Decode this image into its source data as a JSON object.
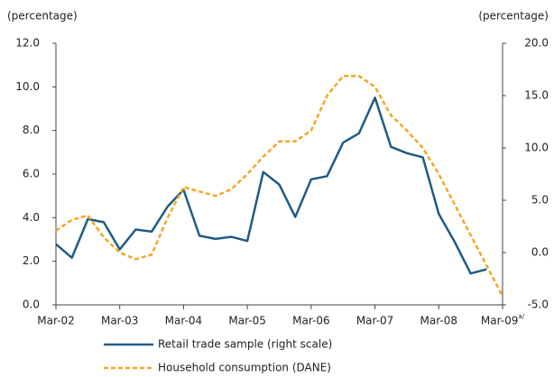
{
  "chart_data": {
    "type": "line",
    "ylabel": "(percentage)",
    "y2label": "(percentage)",
    "categories": [
      "Mar-02",
      null,
      null,
      null,
      "Mar-03",
      null,
      null,
      null,
      "Mar-04",
      null,
      null,
      null,
      "Mar-05",
      null,
      null,
      null,
      "Mar-06",
      null,
      null,
      null,
      "Mar-07",
      null,
      null,
      null,
      "Mar-08",
      null,
      null,
      null,
      "Mar-09"
    ],
    "last_category_note": "a/",
    "ylim": [
      0,
      12
    ],
    "yticks": [
      {
        "value": 0,
        "label": "0.0"
      },
      {
        "value": 2,
        "label": "2.0"
      },
      {
        "value": 4,
        "label": "4.0"
      },
      {
        "value": 6,
        "label": "6.0"
      },
      {
        "value": 8,
        "label": "8.0"
      },
      {
        "value": 10,
        "label": "10.0"
      },
      {
        "value": 12,
        "label": "12.0"
      }
    ],
    "y2lim": [
      -5,
      20
    ],
    "y2ticks": [
      {
        "value": -5,
        "label": "-5.0"
      },
      {
        "value": 0,
        "label": "0.0"
      },
      {
        "value": 5,
        "label": "5.0"
      },
      {
        "value": 10,
        "label": "10.0"
      },
      {
        "value": 15,
        "label": "15.0"
      },
      {
        "value": 20,
        "label": "20.0"
      }
    ],
    "series": [
      {
        "name": "Retail trade sample (right scale)",
        "color": "#1f5c85",
        "axis": "y2",
        "dashed": false,
        "values": [
          0.8,
          -0.5,
          3.2,
          2.9,
          0.3,
          2.2,
          2.0,
          4.4,
          6.0,
          1.6,
          1.3,
          1.5,
          1.1,
          7.7,
          6.5,
          3.4,
          7.0,
          7.3,
          10.5,
          11.4,
          14.8,
          10.1,
          9.5,
          9.1,
          3.7,
          1.0,
          -2.0,
          -1.6,
          null
        ]
      },
      {
        "name": "Household consumption (DANE)",
        "color": "#f5a623",
        "axis": "y",
        "dashed": true,
        "values": [
          3.4,
          3.9,
          4.1,
          3.1,
          2.4,
          2.1,
          2.3,
          4.0,
          5.4,
          5.2,
          5.0,
          5.3,
          6.0,
          6.8,
          7.5,
          7.5,
          8.0,
          9.6,
          10.5,
          10.5,
          10.0,
          8.7,
          8.0,
          7.2,
          6.0,
          4.6,
          3.2,
          1.8,
          0.4
        ]
      }
    ]
  }
}
